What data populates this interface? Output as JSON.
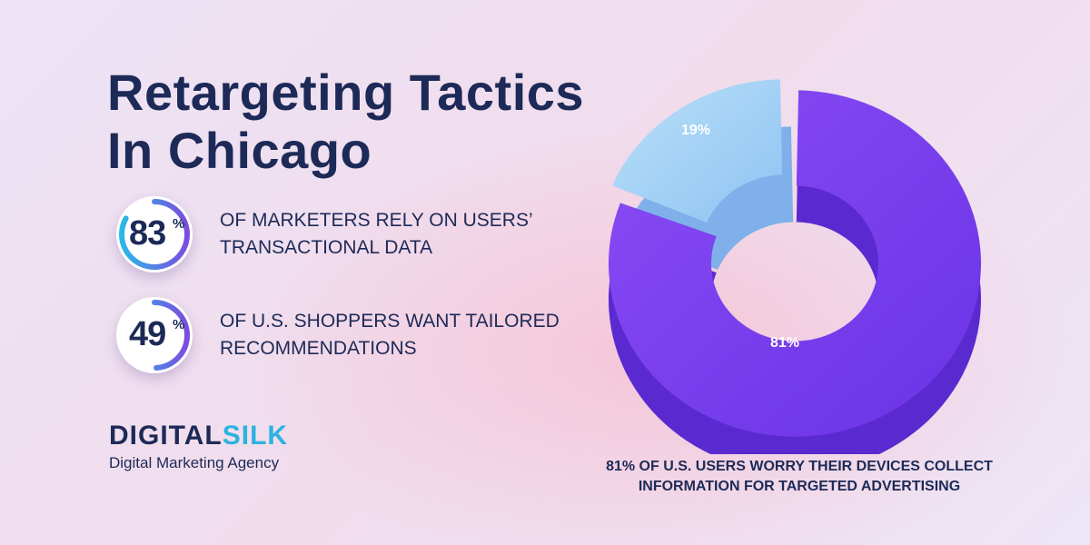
{
  "title_line1": "Retargeting Tactics",
  "title_line2": "In Chicago",
  "stats": [
    {
      "value": "83",
      "unit": "%",
      "fraction": 0.83,
      "text": "OF MARKETERS RELY ON USERS’ TRANSACTIONAL DATA"
    },
    {
      "value": "49",
      "unit": "%",
      "fraction": 0.49,
      "text": "OF U.S. SHOPPERS WANT TAILORED RECOMMENDATIONS"
    }
  ],
  "logo": {
    "part1": "DIGITAL",
    "part2": "SILK",
    "tagline": "Digital Marketing Agency"
  },
  "colors": {
    "navy": "#1d2a57",
    "ring_start": "#2bb8e8",
    "ring_end": "#7a4de0",
    "slice_small": "#a8d4f5",
    "slice_large": "#7b3ff2"
  },
  "chart_data": {
    "type": "pie",
    "style": "3d-donut",
    "categories": [
      "19%",
      "81%"
    ],
    "values": [
      19,
      81
    ],
    "labels": [
      "19%",
      "81%"
    ],
    "caption": "81% OF U.S. USERS WORRY THEIR DEVICES COLLECT INFORMATION FOR TARGETED ADVERTISING"
  }
}
